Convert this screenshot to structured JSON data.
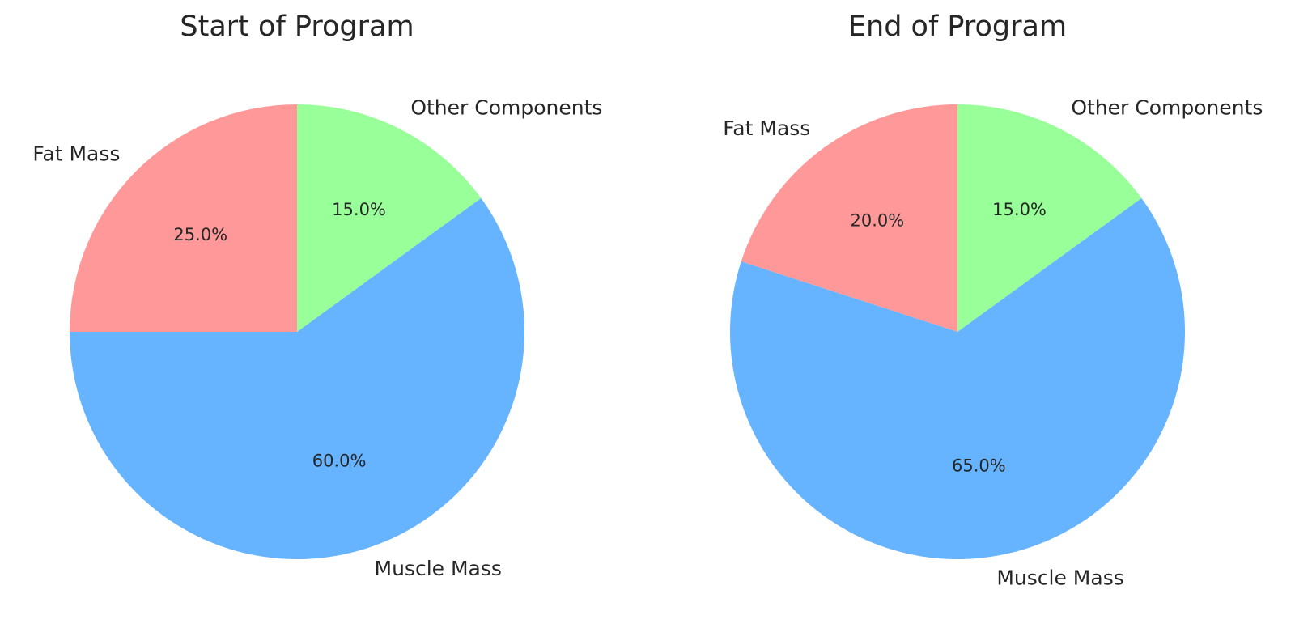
{
  "chart_data": [
    {
      "type": "pie",
      "title": "Start of Program",
      "labels": [
        "Fat Mass",
        "Muscle Mass",
        "Other Components"
      ],
      "values": [
        25.0,
        60.0,
        15.0
      ],
      "value_labels": [
        "25.0%",
        "60.0%",
        "15.0%"
      ],
      "colors": [
        "#ff9999",
        "#66b3ff",
        "#99ff99"
      ],
      "start_angle_deg": 90,
      "direction": "counterclockwise"
    },
    {
      "type": "pie",
      "title": "End of Program",
      "labels": [
        "Fat Mass",
        "Muscle Mass",
        "Other Components"
      ],
      "values": [
        20.0,
        65.0,
        15.0
      ],
      "value_labels": [
        "20.0%",
        "65.0%",
        "15.0%"
      ],
      "colors": [
        "#ff9999",
        "#66b3ff",
        "#99ff99"
      ],
      "start_angle_deg": 90,
      "direction": "counterclockwise"
    }
  ]
}
